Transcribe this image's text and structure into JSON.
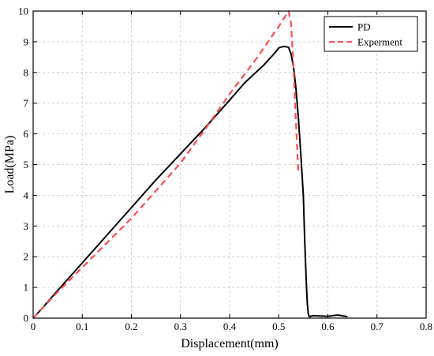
{
  "chart_data": {
    "type": "line",
    "title": "",
    "xlabel": "Displacement(mm)",
    "ylabel": "Load(MPa)",
    "xlim": [
      0,
      0.8
    ],
    "ylim": [
      0,
      10
    ],
    "xticks": [
      "0",
      "0.1",
      "0.2",
      "0.3",
      "0.4",
      "0.5",
      "0.6",
      "0.7",
      "0.8"
    ],
    "yticks": [
      "0",
      "1",
      "2",
      "3",
      "4",
      "5",
      "6",
      "7",
      "8",
      "9",
      "10"
    ],
    "grid": true,
    "legend_position": "top-right",
    "series": [
      {
        "name": "PD",
        "color": "#000000",
        "style": "solid",
        "x": [
          0,
          0.02,
          0.05,
          0.1,
          0.15,
          0.2,
          0.25,
          0.3,
          0.35,
          0.4,
          0.43,
          0.45,
          0.47,
          0.49,
          0.5,
          0.51,
          0.52,
          0.525,
          0.53,
          0.535,
          0.54,
          0.545,
          0.55,
          0.553,
          0.556,
          0.558,
          0.56,
          0.562,
          0.57,
          0.6,
          0.62,
          0.64
        ],
        "y": [
          0,
          0.35,
          0.9,
          1.8,
          2.7,
          3.6,
          4.5,
          5.35,
          6.2,
          7.1,
          7.65,
          7.95,
          8.25,
          8.6,
          8.8,
          8.85,
          8.82,
          8.6,
          8.2,
          7.5,
          6.5,
          5.3,
          4.0,
          2.5,
          1.2,
          0.5,
          0.15,
          0.05,
          0.08,
          0.06,
          0.1,
          0.05
        ]
      },
      {
        "name": "Experment",
        "color": "#ff4c4c",
        "style": "dashed",
        "x": [
          0,
          0.05,
          0.1,
          0.15,
          0.2,
          0.25,
          0.3,
          0.35,
          0.4,
          0.45,
          0.5,
          0.52,
          0.525,
          0.53,
          0.535,
          0.54
        ],
        "y": [
          0,
          0.85,
          1.65,
          2.45,
          3.25,
          4.15,
          5.05,
          6.15,
          7.3,
          8.35,
          9.5,
          10.0,
          9.6,
          8.2,
          6.4,
          4.7
        ]
      }
    ]
  }
}
